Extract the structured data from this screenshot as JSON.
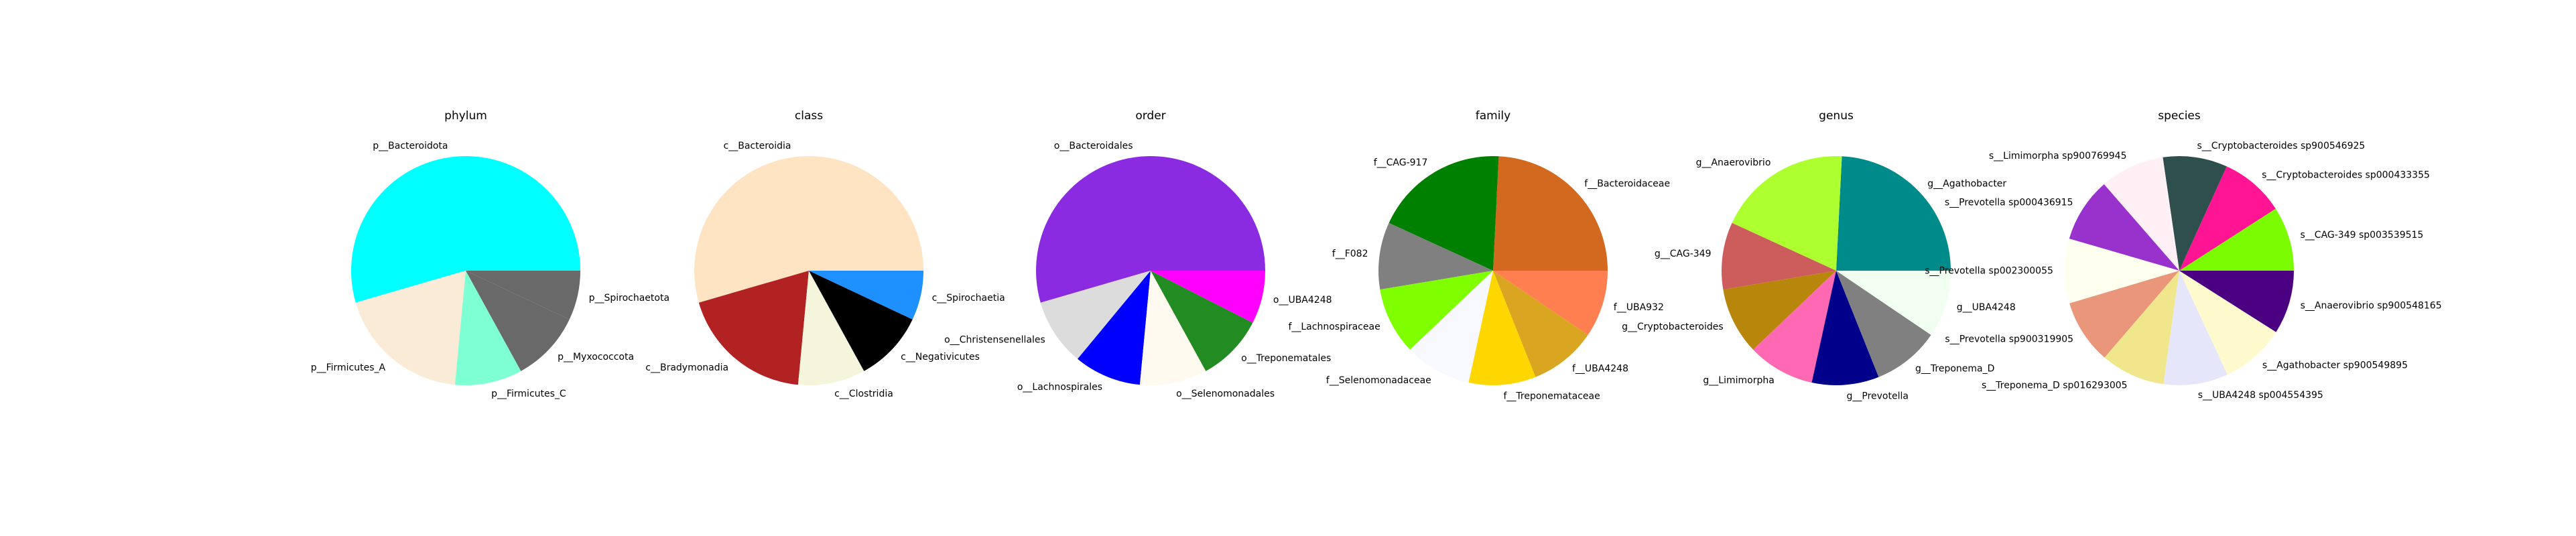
{
  "chart_data": [
    {
      "type": "pie",
      "title": "phylum",
      "slices": [
        {
          "label": "p__Bacteroidota",
          "value": 0.545,
          "color": "#00ffff"
        },
        {
          "label": "p__Firmicutes_A",
          "value": 0.19,
          "color": "#faebd7"
        },
        {
          "label": "p__Firmicutes_C",
          "value": 0.095,
          "color": "#7fffd4"
        },
        {
          "label": "p__Myxococcota",
          "value": 0.1,
          "color": "#696969"
        },
        {
          "label": "p__Spirochaetota",
          "value": 0.07,
          "color": "#696969"
        }
      ]
    },
    {
      "type": "pie",
      "title": "class",
      "slices": [
        {
          "label": "c__Bacteroidia",
          "value": 0.545,
          "color": "#ffe4c4"
        },
        {
          "label": "c__Bradymonadia",
          "value": 0.19,
          "color": "#b22222"
        },
        {
          "label": "c__Clostridia",
          "value": 0.095,
          "color": "#f5f5dc"
        },
        {
          "label": "c__Negativicutes",
          "value": 0.1,
          "color": "#000000"
        },
        {
          "label": "c__Spirochaetia",
          "value": 0.07,
          "color": "#1e90ff"
        }
      ]
    },
    {
      "type": "pie",
      "title": "order",
      "slices": [
        {
          "label": "o__Bacteroidales",
          "value": 0.545,
          "color": "#8a2be2"
        },
        {
          "label": "o__Christensenellales",
          "value": 0.095,
          "color": "#dcdcdc"
        },
        {
          "label": "o__Lachnospirales",
          "value": 0.095,
          "color": "#0000ff"
        },
        {
          "label": "o__Selenomonadales",
          "value": 0.095,
          "color": "#fffaf0"
        },
        {
          "label": "o__Treponematales",
          "value": 0.095,
          "color": "#228b22"
        },
        {
          "label": "o__UBA4248",
          "value": 0.075,
          "color": "#ff00ff"
        }
      ]
    },
    {
      "type": "pie",
      "title": "family",
      "slices": [
        {
          "label": "f__Bacteroidaceae",
          "value": 0.23,
          "color": "#d2691e"
        },
        {
          "label": "f__CAG-917",
          "value": 0.18,
          "color": "#008000"
        },
        {
          "label": "f__F082",
          "value": 0.09,
          "color": "#808080"
        },
        {
          "label": "f__Lachnospiraceae",
          "value": 0.09,
          "color": "#7fff00"
        },
        {
          "label": "f__Selenomonadaceae",
          "value": 0.09,
          "color": "#f8f8ff"
        },
        {
          "label": "f__Treponemataceae",
          "value": 0.09,
          "color": "#ffd700"
        },
        {
          "label": "f__UBA4248",
          "value": 0.09,
          "color": "#daa520"
        },
        {
          "label": "f__UBA932",
          "value": 0.09,
          "color": "#ff7f50"
        }
      ]
    },
    {
      "type": "pie",
      "title": "genus",
      "slices": [
        {
          "label": "g__Agathobacter",
          "value": 0.23,
          "color": "#008b8b"
        },
        {
          "label": "g__Anaerovibrio",
          "value": 0.18,
          "color": "#adff2f"
        },
        {
          "label": "g__CAG-349",
          "value": 0.09,
          "color": "#cd5c5c"
        },
        {
          "label": "g__Cryptobacteroides",
          "value": 0.09,
          "color": "#b8860b"
        },
        {
          "label": "g__Limimorpha",
          "value": 0.09,
          "color": "#ff69b4"
        },
        {
          "label": "g__Prevotella",
          "value": 0.09,
          "color": "#00008b"
        },
        {
          "label": "g__Treponema_D",
          "value": 0.09,
          "color": "#808080"
        },
        {
          "label": "g__UBA4248",
          "value": 0.09,
          "color": "#f0fff0"
        }
      ]
    },
    {
      "type": "pie",
      "title": "species",
      "slices": [
        {
          "label": "s__CAG-349 sp003539515",
          "value": 0.091,
          "color": "#7cfc00"
        },
        {
          "label": "s__Cryptobacteroides sp000433355",
          "value": 0.091,
          "color": "#ff1493"
        },
        {
          "label": "s__Cryptobacteroides sp900546925",
          "value": 0.091,
          "color": "#2f4f4f"
        },
        {
          "label": "s__Limimorpha sp900769945",
          "value": 0.091,
          "color": "#fff0f5"
        },
        {
          "label": "s__Prevotella sp000436915",
          "value": 0.091,
          "color": "#9932cc"
        },
        {
          "label": "s__Prevotella sp002300055",
          "value": 0.091,
          "color": "#fffff0"
        },
        {
          "label": "s__Prevotella sp900319905",
          "value": 0.091,
          "color": "#e9967a"
        },
        {
          "label": "s__Treponema_D sp016293005",
          "value": 0.091,
          "color": "#f0e68c"
        },
        {
          "label": "s__UBA4248 sp004554395",
          "value": 0.091,
          "color": "#e6e6fa"
        },
        {
          "label": "s__Agathobacter sp900549895",
          "value": 0.091,
          "color": "#fffacd"
        },
        {
          "label": "s__Anaerovibrio sp900548165",
          "value": 0.09,
          "color": "#4b0082"
        }
      ]
    }
  ]
}
